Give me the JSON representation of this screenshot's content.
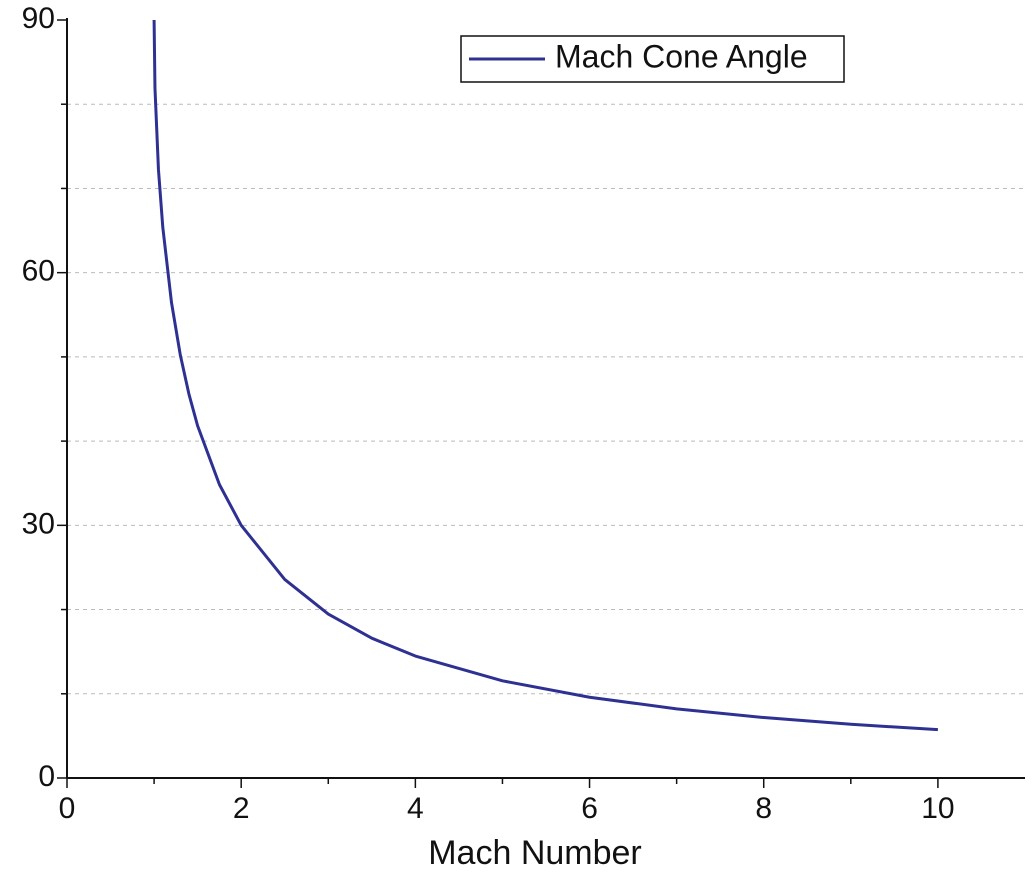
{
  "chart_data": {
    "type": "line",
    "x_label": "Mach Number",
    "x": [
      1,
      1.01,
      1.05,
      1.1,
      1.2,
      1.3,
      1.4,
      1.5,
      1.75,
      2,
      2.5,
      3,
      3.5,
      4,
      5,
      6,
      7,
      8,
      9,
      10
    ],
    "series": [
      {
        "name": "Mach Cone Angle",
        "color": "#2e3192",
        "values": [
          90,
          81.93,
          72.25,
          65.38,
          56.44,
          50.28,
          45.58,
          41.81,
          34.85,
          30,
          23.58,
          19.47,
          16.6,
          14.48,
          11.54,
          9.59,
          8.21,
          7.18,
          6.38,
          5.74
        ]
      }
    ],
    "xlim": [
      0,
      11
    ],
    "xticks": [
      0,
      2,
      4,
      6,
      8,
      10
    ],
    "xminorticks": [
      1,
      3,
      5,
      7,
      9
    ],
    "ylim": [
      0,
      90
    ],
    "yticks": [
      0,
      30,
      60,
      90
    ],
    "yminorticks": [
      10,
      20,
      40,
      50,
      70,
      80
    ],
    "grid": true,
    "legend": "top-right"
  }
}
